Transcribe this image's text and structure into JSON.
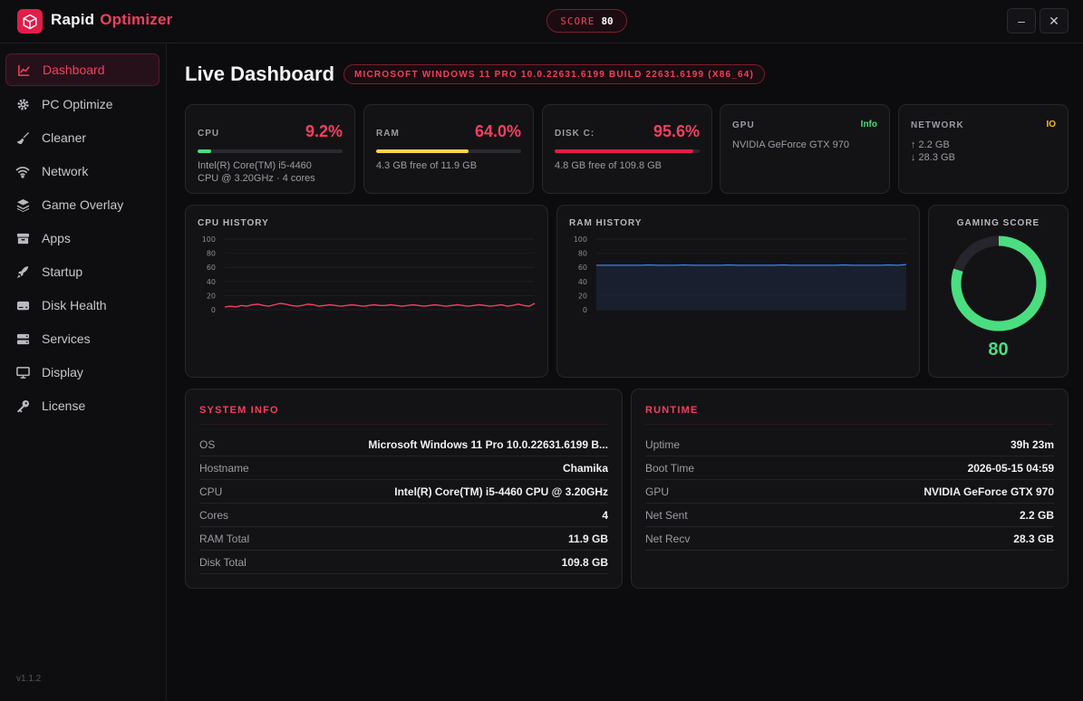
{
  "app": {
    "brand_first": "Rapid",
    "brand_second": "Optimizer",
    "version": "v1.1.2"
  },
  "header": {
    "score_label": "SCORE",
    "score_value": "80",
    "minimize": "–",
    "close": "✕"
  },
  "sidebar": {
    "items": [
      {
        "label": "Dashboard",
        "icon": "chart-line-icon",
        "active": true
      },
      {
        "label": "PC Optimize",
        "icon": "gear-icon"
      },
      {
        "label": "Cleaner",
        "icon": "broom-icon"
      },
      {
        "label": "Network",
        "icon": "wifi-icon"
      },
      {
        "label": "Game Overlay",
        "icon": "layers-icon"
      },
      {
        "label": "Apps",
        "icon": "box-icon"
      },
      {
        "label": "Startup",
        "icon": "rocket-icon"
      },
      {
        "label": "Disk Health",
        "icon": "disk-icon"
      },
      {
        "label": "Services",
        "icon": "server-icon"
      },
      {
        "label": "Display",
        "icon": "monitor-icon"
      },
      {
        "label": "License",
        "icon": "key-icon"
      }
    ]
  },
  "page": {
    "title": "Live Dashboard",
    "os_badge": "MICROSOFT WINDOWS 11 PRO 10.0.22631.6199 BUILD 22631.6199 (X86_64)"
  },
  "stats": {
    "cpu": {
      "label": "CPU",
      "value": "9.2%",
      "percent": 9.2,
      "color": "#4ade80",
      "line1": "Intel(R) Core(TM) i5-4460",
      "line2": "CPU @ 3.20GHz · 4 cores"
    },
    "ram": {
      "label": "RAM",
      "value": "64.0%",
      "percent": 64.0,
      "color": "#fcd34d",
      "line1": "4.3 GB free of 11.9 GB"
    },
    "disk": {
      "label": "DISK C:",
      "value": "95.6%",
      "percent": 95.6,
      "color": "#e11d48",
      "line1": "4.8 GB free of 109.8 GB"
    },
    "gpu": {
      "label": "GPU",
      "tag": "Info",
      "tag_color": "#4ade80",
      "line1": "NVIDIA GeForce GTX 970"
    },
    "network": {
      "label": "NETWORK",
      "tag": "IO",
      "tag_color": "#fbbf24",
      "line1": "↑ 2.2 GB",
      "line2": "↓ 28.3 GB"
    }
  },
  "charts": {
    "cpu_title": "CPU HISTORY",
    "ram_title": "RAM HISTORY",
    "gaming_title": "GAMING SCORE",
    "gaming_value": "80"
  },
  "chart_data": [
    {
      "type": "line",
      "title": "CPU HISTORY",
      "ylim": [
        0,
        100
      ],
      "yticks": [
        "100",
        "80",
        "60",
        "40",
        "20",
        "0"
      ],
      "color": "#f43f5e",
      "values": [
        4,
        5,
        4,
        6,
        5,
        7,
        8,
        6,
        5,
        7,
        9,
        8,
        6,
        5,
        6,
        8,
        7,
        5,
        6,
        7,
        6,
        5,
        6,
        7,
        6,
        5,
        6,
        7,
        6,
        6,
        7,
        6,
        5,
        6,
        7,
        6,
        5,
        6,
        7,
        6,
        5,
        6,
        7,
        6,
        5,
        6,
        7,
        6,
        5,
        6,
        7,
        5,
        6,
        8,
        6,
        5,
        9
      ]
    },
    {
      "type": "area",
      "title": "RAM HISTORY",
      "ylim": [
        0,
        100
      ],
      "yticks": [
        "100",
        "80",
        "60",
        "40",
        "20",
        "0"
      ],
      "color": "#3b82f6",
      "values": [
        63,
        63,
        63,
        63,
        63,
        63,
        63.5,
        63,
        63,
        63,
        63.5,
        63,
        63,
        63,
        63,
        63.5,
        63,
        63,
        63,
        63,
        63,
        63.5,
        63,
        63,
        63,
        63,
        63,
        63,
        63.5,
        63,
        63,
        63,
        63,
        63.5,
        63,
        64
      ]
    },
    {
      "type": "pie",
      "title": "GAMING SCORE",
      "values": [
        80
      ],
      "max": 100,
      "color": "#4ade80"
    }
  ],
  "system_info": {
    "title": "SYSTEM INFO",
    "rows": [
      {
        "k": "OS",
        "v": "Microsoft Windows 11 Pro 10.0.22631.6199 B..."
      },
      {
        "k": "Hostname",
        "v": "Chamika"
      },
      {
        "k": "CPU",
        "v": "Intel(R) Core(TM) i5-4460 CPU @ 3.20GHz"
      },
      {
        "k": "Cores",
        "v": "4"
      },
      {
        "k": "RAM Total",
        "v": "11.9 GB"
      },
      {
        "k": "Disk Total",
        "v": "109.8 GB"
      }
    ]
  },
  "runtime": {
    "title": "RUNTIME",
    "rows": [
      {
        "k": "Uptime",
        "v": "39h 23m"
      },
      {
        "k": "Boot Time",
        "v": "2026-05-15 04:59"
      },
      {
        "k": "GPU",
        "v": "NVIDIA GeForce GTX 970"
      },
      {
        "k": "Net Sent",
        "v": "2.2 GB"
      },
      {
        "k": "Net Recv",
        "v": "28.3 GB"
      }
    ]
  }
}
